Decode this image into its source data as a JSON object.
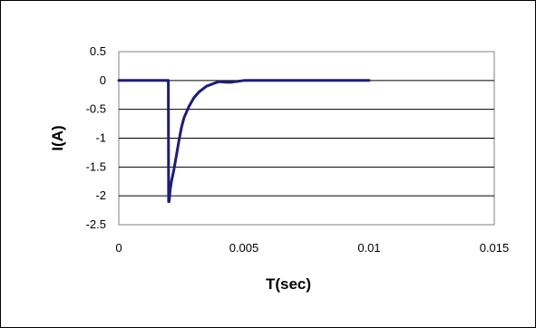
{
  "chart_data": {
    "type": "line",
    "title": "",
    "xlabel": "T(sec)",
    "ylabel": "I(A)",
    "xlim": [
      0,
      0.015
    ],
    "ylim": [
      -2.5,
      0.5
    ],
    "x_ticks": [
      0,
      0.005,
      0.01,
      0.015
    ],
    "x_tick_labels": [
      "0",
      "0.005",
      "0.01",
      "0.015"
    ],
    "y_ticks": [
      0.5,
      0,
      -0.5,
      -1,
      -1.5,
      -2,
      -2.5
    ],
    "y_tick_labels": [
      "0.5",
      "0",
      "-0.5",
      "-1",
      "-1.5",
      "-2",
      "-2.5"
    ],
    "grid": "horizontal",
    "legend": "none",
    "colors": {
      "series": "#1c1c7c",
      "plot_border": "#808080",
      "grid": "#000000"
    },
    "series": [
      {
        "x": [
          0,
          0.001,
          0.0019,
          0.00198,
          0.00199,
          0.002,
          0.00201,
          0.00205,
          0.0021,
          0.0022,
          0.0023,
          0.0024,
          0.0025,
          0.0026,
          0.0028,
          0.003,
          0.0032,
          0.0035,
          0.0038,
          0.004,
          0.0043,
          0.0045,
          0.005,
          0.006,
          0.007,
          0.008,
          0.009,
          0.01
        ],
        "y": [
          0,
          0,
          0,
          0,
          -2.1,
          -2.05,
          -2.1,
          -1.9,
          -1.75,
          -1.55,
          -1.3,
          -1.05,
          -0.82,
          -0.65,
          -0.45,
          -0.3,
          -0.2,
          -0.1,
          -0.05,
          -0.02,
          -0.03,
          -0.03,
          0,
          0,
          0,
          0,
          0,
          0
        ]
      }
    ]
  }
}
